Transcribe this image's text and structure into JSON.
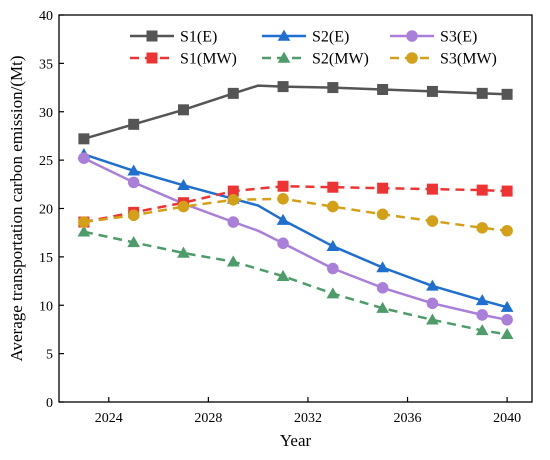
{
  "chart_data": {
    "type": "line",
    "xlabel": "Year",
    "ylabel": "Average transportation carbon emission/(Mt)",
    "xlim": [
      2022,
      2041
    ],
    "ylim": [
      0,
      40
    ],
    "x_ticks": [
      2024,
      2028,
      2032,
      2036,
      2040
    ],
    "y_ticks": [
      0,
      5,
      10,
      15,
      20,
      25,
      30,
      35,
      40
    ],
    "grid": false,
    "legend_position": "top",
    "series": [
      {
        "name": "S1(E)",
        "color": "#555555",
        "dash": "solid",
        "marker": "square",
        "x": [
          2023,
          2025,
          2027,
          2029,
          2031,
          2033,
          2035,
          2037,
          2039,
          2040
        ],
        "y": [
          27.2,
          28.7,
          30.2,
          31.9,
          32.6,
          32.5,
          32.3,
          32.1,
          31.9,
          31.8
        ],
        "line_x": [
          2023,
          2025,
          2027,
          2029,
          2030,
          2031,
          2033,
          2035,
          2037,
          2039,
          2040
        ],
        "line_y": [
          27.2,
          28.7,
          30.2,
          31.9,
          32.7,
          32.6,
          32.5,
          32.3,
          32.1,
          31.9,
          31.8
        ]
      },
      {
        "name": "S2(E)",
        "color": "#1f6fd1",
        "dash": "solid",
        "marker": "triangle",
        "x": [
          2023,
          2025,
          2027,
          2029,
          2031,
          2033,
          2035,
          2037,
          2039,
          2040
        ],
        "y": [
          25.6,
          23.9,
          22.4,
          21.0,
          18.8,
          16.1,
          13.9,
          12.0,
          10.5,
          9.8
        ],
        "line_x": [
          2023,
          2025,
          2027,
          2029,
          2030,
          2031,
          2033,
          2035,
          2037,
          2039,
          2040
        ],
        "line_y": [
          25.6,
          23.9,
          22.4,
          21.0,
          20.3,
          18.8,
          16.1,
          13.9,
          12.0,
          10.5,
          9.8
        ]
      },
      {
        "name": "S3(E)",
        "color": "#a97fd9",
        "dash": "solid",
        "marker": "circle",
        "x": [
          2023,
          2025,
          2027,
          2029,
          2031,
          2033,
          2035,
          2037,
          2039,
          2040
        ],
        "y": [
          25.2,
          22.7,
          20.5,
          18.6,
          16.4,
          13.8,
          11.8,
          10.2,
          9.0,
          8.5
        ],
        "line_x": [
          2023,
          2025,
          2027,
          2029,
          2030,
          2031,
          2033,
          2035,
          2037,
          2039,
          2040
        ],
        "line_y": [
          25.2,
          22.7,
          20.5,
          18.6,
          17.7,
          16.4,
          13.8,
          11.8,
          10.2,
          9.0,
          8.5
        ]
      },
      {
        "name": "S1(MW)",
        "color": "#ee3333",
        "dash": "dashed",
        "marker": "square",
        "x": [
          2023,
          2025,
          2027,
          2029,
          2031,
          2033,
          2035,
          2037,
          2039,
          2040
        ],
        "y": [
          18.6,
          19.6,
          20.6,
          21.8,
          22.3,
          22.2,
          22.1,
          22.0,
          21.9,
          21.8
        ]
      },
      {
        "name": "S2(MW)",
        "color": "#4d9c6a",
        "dash": "dashed",
        "marker": "triangle",
        "x": [
          2023,
          2025,
          2027,
          2029,
          2031,
          2033,
          2035,
          2037,
          2039,
          2040
        ],
        "y": [
          17.6,
          16.5,
          15.4,
          14.5,
          13.0,
          11.2,
          9.7,
          8.5,
          7.4,
          7.0
        ]
      },
      {
        "name": "S3(MW)",
        "color": "#d4a017",
        "dash": "dashed",
        "marker": "circle",
        "x": [
          2023,
          2025,
          2027,
          2029,
          2031,
          2033,
          2035,
          2037,
          2039,
          2040
        ],
        "y": [
          18.6,
          19.3,
          20.2,
          20.9,
          21.0,
          20.2,
          19.4,
          18.7,
          18.0,
          17.7
        ]
      }
    ]
  }
}
